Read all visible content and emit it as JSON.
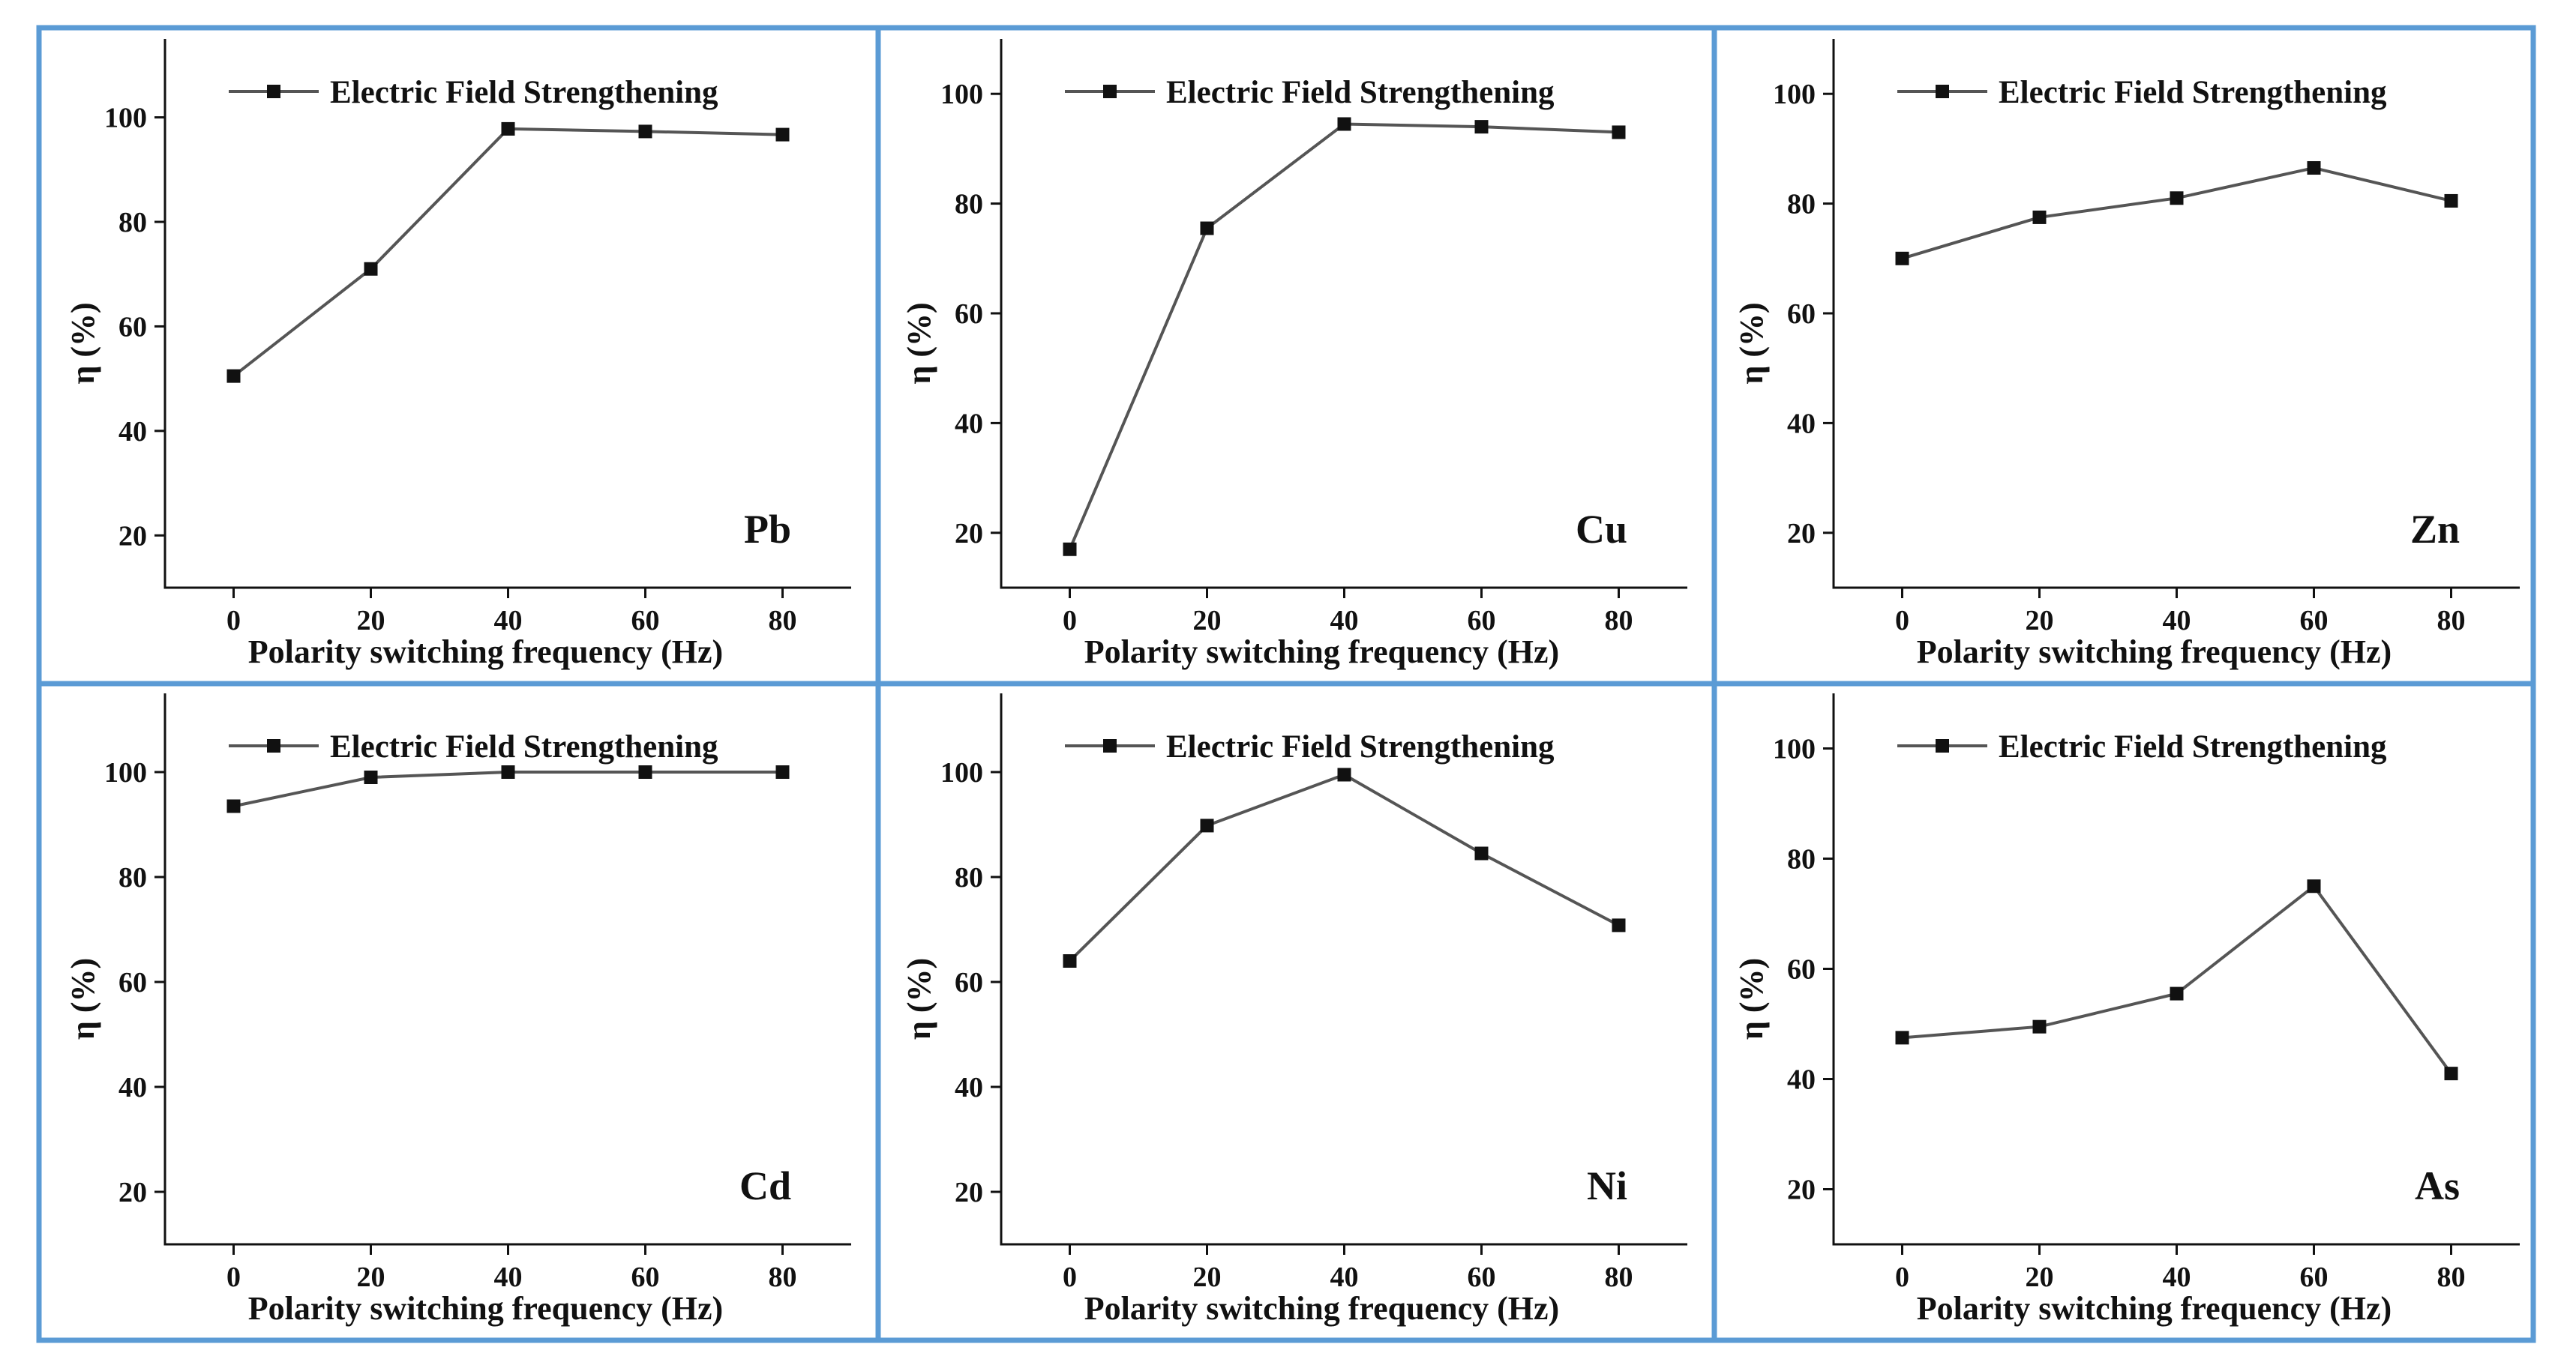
{
  "figure": {
    "frame_color": "#5b9bd5",
    "line_color": "#555555",
    "marker_color": "#111111",
    "axis_color": "#111111",
    "text_color": "#111111"
  },
  "chart_data": [
    {
      "type": "line",
      "panel_label": "Pb",
      "xlabel": "Polarity switching frequency (Hz)",
      "ylabel": "η (%)",
      "xlim": [
        -10,
        90
      ],
      "ylim": [
        10,
        115
      ],
      "xticks": [
        0,
        20,
        40,
        60,
        80
      ],
      "yticks": [
        20,
        40,
        60,
        80,
        100
      ],
      "series": [
        {
          "name": "Electric Field Strengthening",
          "x": [
            0,
            20,
            40,
            60,
            80
          ],
          "y": [
            50.5,
            71,
            97.8,
            97.3,
            96.7
          ]
        }
      ]
    },
    {
      "type": "line",
      "panel_label": "Cu",
      "xlabel": "Polarity switching frequency (Hz)",
      "ylabel": "η (%)",
      "xlim": [
        -10,
        90
      ],
      "ylim": [
        10,
        110
      ],
      "xticks": [
        0,
        20,
        40,
        60,
        80
      ],
      "yticks": [
        20,
        40,
        60,
        80,
        100
      ],
      "series": [
        {
          "name": "Electric Field Strengthening",
          "x": [
            0,
            20,
            40,
            60,
            80
          ],
          "y": [
            17,
            75.5,
            94.5,
            94,
            93
          ]
        }
      ]
    },
    {
      "type": "line",
      "panel_label": "Zn",
      "xlabel": "Polarity switching frequency (Hz)",
      "ylabel": "η (%)",
      "xlim": [
        -10,
        90
      ],
      "ylim": [
        10,
        110
      ],
      "xticks": [
        0,
        20,
        40,
        60,
        80
      ],
      "yticks": [
        20,
        40,
        60,
        80,
        100
      ],
      "series": [
        {
          "name": "Electric Field Strengthening",
          "x": [
            0,
            20,
            40,
            60,
            80
          ],
          "y": [
            70,
            77.5,
            81,
            86.5,
            80.5
          ]
        }
      ]
    },
    {
      "type": "line",
      "panel_label": "Cd",
      "xlabel": "Polarity switching frequency (Hz)",
      "ylabel": "η (%)",
      "xlim": [
        -10,
        90
      ],
      "ylim": [
        10,
        115
      ],
      "xticks": [
        0,
        20,
        40,
        60,
        80
      ],
      "yticks": [
        20,
        40,
        60,
        80,
        100
      ],
      "series": [
        {
          "name": "Electric Field Strengthening",
          "x": [
            0,
            20,
            40,
            60,
            80
          ],
          "y": [
            93.5,
            99,
            100,
            100,
            100
          ]
        }
      ]
    },
    {
      "type": "line",
      "panel_label": "Ni",
      "xlabel": "Polarity switching frequency (Hz)",
      "ylabel": "η (%)",
      "xlim": [
        -10,
        90
      ],
      "ylim": [
        10,
        115
      ],
      "xticks": [
        0,
        20,
        40,
        60,
        80
      ],
      "yticks": [
        20,
        40,
        60,
        80,
        100
      ],
      "series": [
        {
          "name": "Electric Field Strengthening",
          "x": [
            0,
            20,
            40,
            60,
            80
          ],
          "y": [
            64,
            89.8,
            99.5,
            84.5,
            70.8
          ]
        }
      ]
    },
    {
      "type": "line",
      "panel_label": "As",
      "xlabel": "Polarity switching frequency (Hz)",
      "ylabel": "η (%)",
      "xlim": [
        -10,
        90
      ],
      "ylim": [
        10,
        110
      ],
      "xticks": [
        0,
        20,
        40,
        60,
        80
      ],
      "yticks": [
        20,
        40,
        60,
        80,
        100
      ],
      "series": [
        {
          "name": "Electric Field Strengthening",
          "x": [
            0,
            20,
            40,
            60,
            80
          ],
          "y": [
            47.5,
            49.5,
            55.5,
            75,
            41
          ]
        }
      ]
    }
  ]
}
